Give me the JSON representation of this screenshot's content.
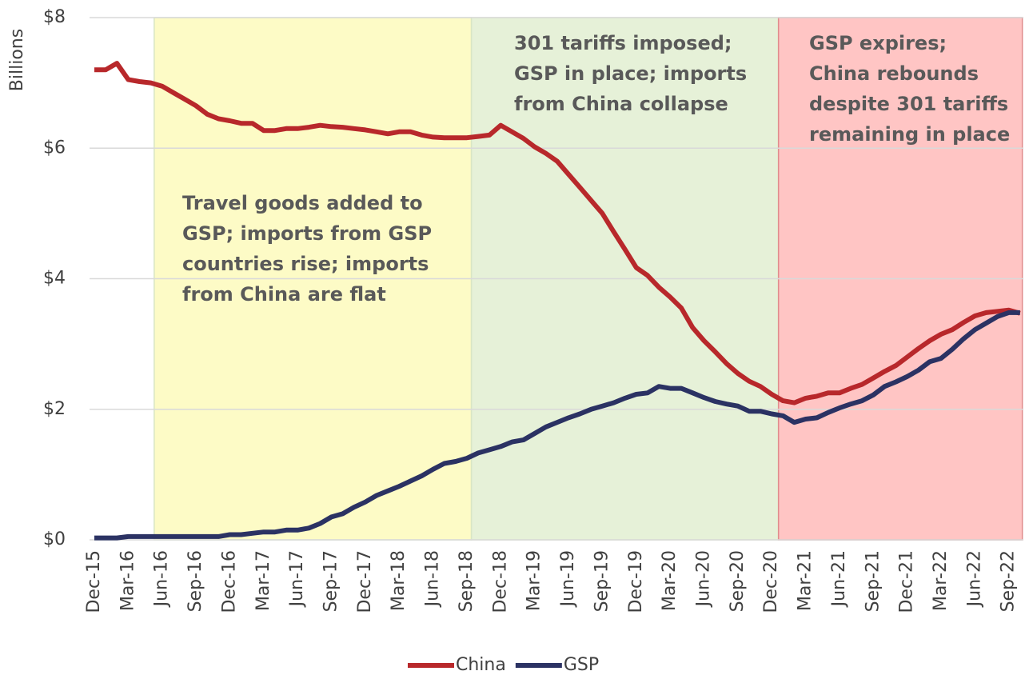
{
  "chart_data": {
    "type": "line",
    "y_label": "Billions",
    "categories": [
      "Dec-15",
      null,
      null,
      "Mar-16",
      null,
      null,
      "Jun-16",
      null,
      null,
      "Sep-16",
      null,
      null,
      "Dec-16",
      null,
      null,
      "Mar-17",
      null,
      null,
      "Jun-17",
      null,
      null,
      "Sep-17",
      null,
      null,
      "Dec-17",
      null,
      null,
      "Mar-18",
      null,
      null,
      "Jun-18",
      null,
      null,
      "Sep-18",
      null,
      null,
      "Dec-18",
      null,
      null,
      "Mar-19",
      null,
      null,
      "Jun-19",
      null,
      null,
      "Sep-19",
      null,
      null,
      "Dec-19",
      null,
      null,
      "Mar-20",
      null,
      null,
      "Jun-20",
      null,
      null,
      "Sep-20",
      null,
      null,
      "Dec-20",
      null,
      null,
      "Mar-21",
      null,
      null,
      "Jun-21",
      null,
      null,
      "Sep-21",
      null,
      null,
      "Dec-21",
      null,
      null,
      "Mar-22",
      null,
      null,
      "Jun-22",
      null,
      null,
      "Sep-22",
      null
    ],
    "series": [
      {
        "name": "China",
        "color": "#b8282b",
        "values": [
          7.2,
          7.2,
          7.3,
          7.05,
          7.02,
          7.0,
          6.95,
          6.85,
          6.75,
          6.65,
          6.52,
          6.45,
          6.42,
          6.38,
          6.38,
          6.27,
          6.27,
          6.3,
          6.3,
          6.32,
          6.35,
          6.33,
          6.32,
          6.3,
          6.28,
          6.25,
          6.22,
          6.25,
          6.25,
          6.2,
          6.17,
          6.16,
          6.16,
          6.16,
          6.18,
          6.2,
          6.35,
          6.25,
          6.15,
          6.02,
          5.92,
          5.8,
          5.6,
          5.4,
          5.2,
          5.0,
          4.72,
          4.45,
          4.17,
          4.05,
          3.87,
          3.72,
          3.55,
          3.25,
          3.05,
          2.88,
          2.7,
          2.55,
          2.43,
          2.35,
          2.23,
          2.13,
          2.1,
          2.17,
          2.2,
          2.25,
          2.25,
          2.32,
          2.38,
          2.48,
          2.58,
          2.67,
          2.8,
          2.93,
          3.05,
          3.15,
          3.22,
          3.33,
          3.43,
          3.48,
          3.5,
          3.52,
          3.47
        ]
      },
      {
        "name": "GSP",
        "color": "#2b3263",
        "values": [
          0.03,
          0.03,
          0.03,
          0.05,
          0.05,
          0.05,
          0.05,
          0.05,
          0.05,
          0.05,
          0.05,
          0.05,
          0.08,
          0.08,
          0.1,
          0.12,
          0.12,
          0.15,
          0.15,
          0.18,
          0.25,
          0.35,
          0.4,
          0.5,
          0.58,
          0.68,
          0.75,
          0.82,
          0.9,
          0.98,
          1.08,
          1.17,
          1.2,
          1.25,
          1.33,
          1.38,
          1.43,
          1.5,
          1.53,
          1.63,
          1.73,
          1.8,
          1.87,
          1.93,
          2.0,
          2.05,
          2.1,
          2.17,
          2.23,
          2.25,
          2.35,
          2.32,
          2.32,
          2.25,
          2.18,
          2.12,
          2.08,
          2.05,
          1.97,
          1.97,
          1.93,
          1.9,
          1.8,
          1.85,
          1.87,
          1.95,
          2.02,
          2.08,
          2.13,
          2.22,
          2.35,
          2.42,
          2.5,
          2.6,
          2.73,
          2.78,
          2.92,
          3.08,
          3.22,
          3.32,
          3.42,
          3.48,
          3.48
        ]
      }
    ],
    "ylim": [
      0,
      8
    ],
    "yticks": [
      {
        "value": 0,
        "label": "$0"
      },
      {
        "value": 2,
        "label": "$2"
      },
      {
        "value": 4,
        "label": "$4"
      },
      {
        "value": 6,
        "label": "$6"
      },
      {
        "value": 8,
        "label": "$8"
      }
    ],
    "grid": true,
    "legend": "bottom",
    "regions": [
      {
        "x_start": 5.3,
        "x_end": 33.4,
        "color": "#fdfbc6",
        "lines": [
          "Travel goods added to",
          "GSP; imports from GSP",
          "countries rise; imports",
          "from China are flat"
        ]
      },
      {
        "x_start": 33.4,
        "x_end": 60.6,
        "color": "#e6f1d8",
        "lines": [
          "301 tariffs imposed;",
          "GSP in place; imports",
          "from China collapse"
        ]
      },
      {
        "x_start": 60.6,
        "x_end": 82.2,
        "color": "#ffc5c4",
        "lines": [
          "GSP expires;",
          "China rebounds",
          "despite 301 tariffs",
          "remaining in place"
        ]
      }
    ]
  }
}
